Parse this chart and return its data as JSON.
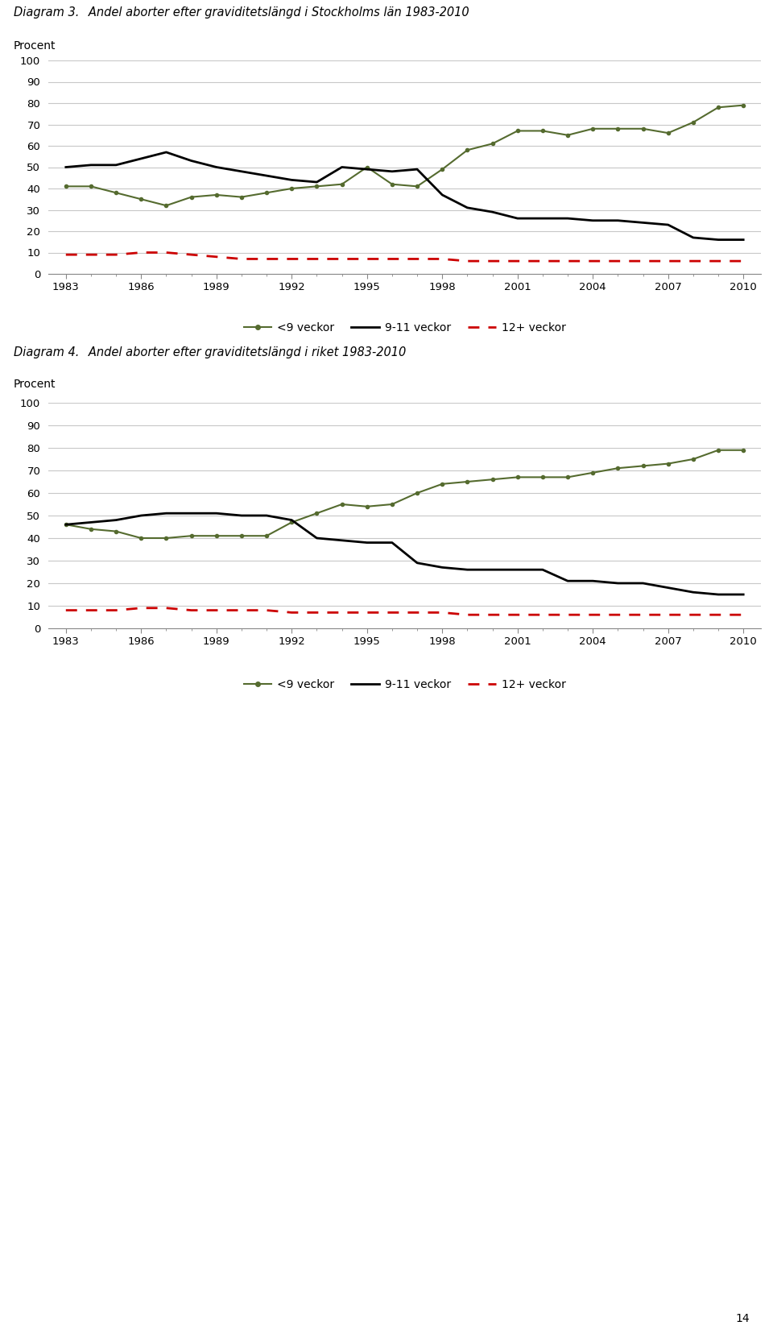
{
  "chart1": {
    "title_bold": "Diagram 3.",
    "title_rest": "   Andel aborter efter graviditetslängd i Stockholms län 1983-2010",
    "ylabel": "Procent",
    "years": [
      1983,
      1984,
      1985,
      1986,
      1987,
      1988,
      1989,
      1990,
      1991,
      1992,
      1993,
      1994,
      1995,
      1996,
      1997,
      1998,
      1999,
      2000,
      2001,
      2002,
      2003,
      2004,
      2005,
      2006,
      2007,
      2008,
      2009,
      2010
    ],
    "green": [
      41,
      41,
      38,
      35,
      32,
      36,
      37,
      36,
      38,
      40,
      41,
      42,
      50,
      42,
      41,
      49,
      58,
      61,
      67,
      67,
      65,
      68,
      68,
      68,
      66,
      71,
      78,
      79
    ],
    "black": [
      50,
      51,
      51,
      54,
      57,
      53,
      50,
      48,
      46,
      44,
      43,
      50,
      49,
      48,
      49,
      37,
      31,
      29,
      26,
      26,
      26,
      25,
      25,
      24,
      23,
      17,
      16,
      16
    ],
    "red": [
      9,
      9,
      9,
      10,
      10,
      9,
      8,
      7,
      7,
      7,
      7,
      7,
      7,
      7,
      7,
      7,
      6,
      6,
      6,
      6,
      6,
      6,
      6,
      6,
      6,
      6,
      6,
      6
    ]
  },
  "chart2": {
    "title_bold": "Diagram 4.",
    "title_rest": "   Andel aborter efter graviditetslängd i riket 1983-2010",
    "ylabel": "Procent",
    "years": [
      1983,
      1984,
      1985,
      1986,
      1987,
      1988,
      1989,
      1990,
      1991,
      1992,
      1993,
      1994,
      1995,
      1996,
      1997,
      1998,
      1999,
      2000,
      2001,
      2002,
      2003,
      2004,
      2005,
      2006,
      2007,
      2008,
      2009,
      2010
    ],
    "green": [
      46,
      44,
      43,
      40,
      40,
      41,
      41,
      41,
      41,
      47,
      51,
      55,
      54,
      55,
      60,
      64,
      65,
      66,
      67,
      67,
      67,
      69,
      71,
      72,
      73,
      75,
      79,
      79
    ],
    "black": [
      46,
      47,
      48,
      50,
      51,
      51,
      51,
      50,
      50,
      48,
      40,
      39,
      38,
      38,
      29,
      27,
      26,
      26,
      26,
      26,
      21,
      21,
      20,
      20,
      18,
      16,
      15,
      15
    ],
    "red": [
      8,
      8,
      8,
      9,
      9,
      8,
      8,
      8,
      8,
      7,
      7,
      7,
      7,
      7,
      7,
      7,
      6,
      6,
      6,
      6,
      6,
      6,
      6,
      6,
      6,
      6,
      6,
      6
    ]
  },
  "legend_labels": [
    "<9 veckor",
    "9-11 veckor",
    "12+ veckor"
  ],
  "green_color": "#556B2F",
  "black_color": "#000000",
  "red_color": "#CC0000",
  "grid_color": "#C8C8C8",
  "ylim": [
    0,
    100
  ],
  "yticks": [
    0,
    10,
    20,
    30,
    40,
    50,
    60,
    70,
    80,
    90,
    100
  ],
  "xtick_years": [
    1983,
    1986,
    1989,
    1992,
    1995,
    1998,
    2001,
    2004,
    2007,
    2010
  ],
  "page_number": "14"
}
